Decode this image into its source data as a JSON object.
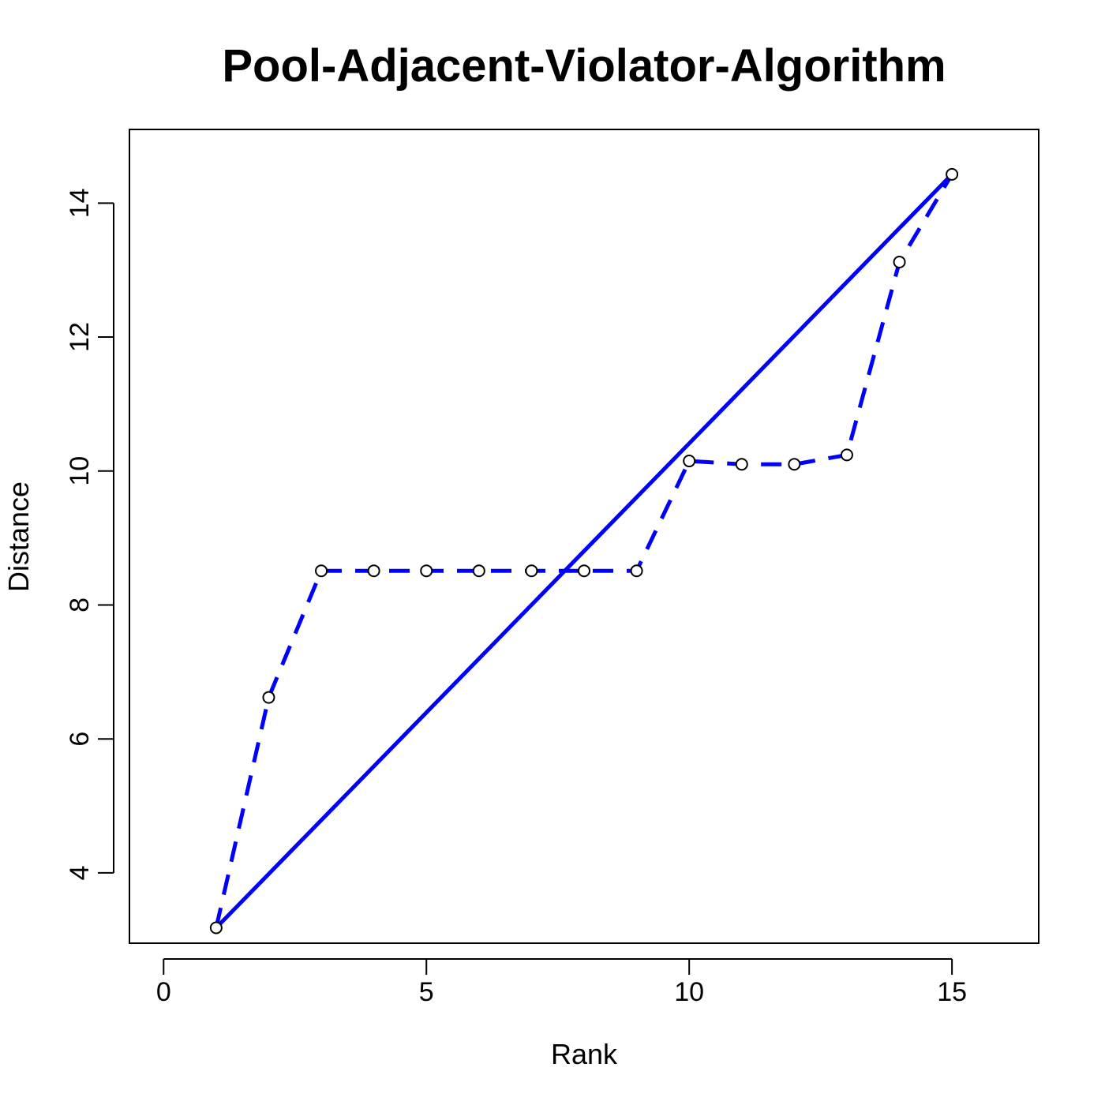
{
  "chart_data": {
    "type": "line",
    "title": "Pool-Adjacent-Violator-Algorithm",
    "xlabel": "Rank",
    "ylabel": "Distance",
    "xlim": [
      -0.65,
      16.65
    ],
    "ylim": [
      2.95,
      15.1
    ],
    "x_ticks": [
      0,
      5,
      10,
      15
    ],
    "y_ticks": [
      4,
      6,
      8,
      10,
      12,
      14
    ],
    "grid": false,
    "series": [
      {
        "style": "dashed-with-points",
        "color": "#0000ff",
        "points": [
          {
            "x": 1,
            "y": 3.18
          },
          {
            "x": 2,
            "y": 6.62
          },
          {
            "x": 3,
            "y": 8.51
          },
          {
            "x": 4,
            "y": 8.51
          },
          {
            "x": 5,
            "y": 8.51
          },
          {
            "x": 6,
            "y": 8.51
          },
          {
            "x": 7,
            "y": 8.51
          },
          {
            "x": 8,
            "y": 8.51
          },
          {
            "x": 9,
            "y": 8.51
          },
          {
            "x": 10,
            "y": 10.15
          },
          {
            "x": 11,
            "y": 10.1
          },
          {
            "x": 12,
            "y": 10.1
          },
          {
            "x": 13,
            "y": 10.24
          },
          {
            "x": 14,
            "y": 13.12
          },
          {
            "x": 15,
            "y": 14.43
          }
        ]
      },
      {
        "style": "solid",
        "color": "#0000ff",
        "points": [
          {
            "x": 1,
            "y": 3.18
          },
          {
            "x": 15,
            "y": 14.43
          }
        ]
      }
    ]
  }
}
